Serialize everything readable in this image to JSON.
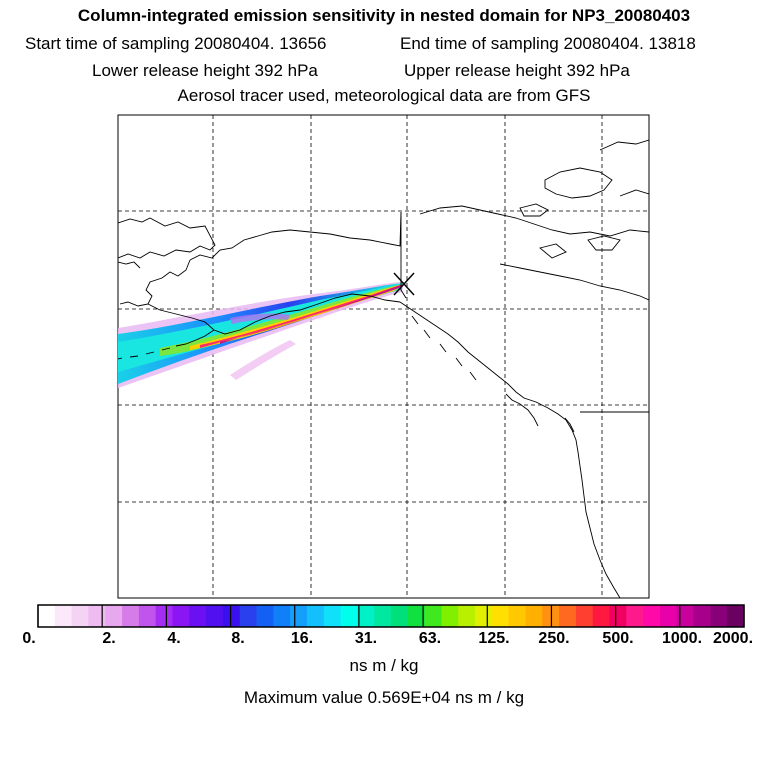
{
  "header": {
    "title": "Column-integrated emission sensitivity in nested domain for NP3_20080403",
    "start_time": "Start time of sampling 20080404. 13656",
    "end_time": "End time of sampling 20080404. 13818",
    "lower_height": "Lower release height  392 hPa",
    "upper_height": "Upper release height  392 hPa",
    "tracer_note": "Aerosol tracer used, meteorological data are from GFS"
  },
  "map": {
    "receptor_marker": "receptor-x-marker",
    "plume_colors": [
      "#e7a8f0",
      "#9a2cff",
      "#1d8cff",
      "#19e6e0",
      "#7ae640",
      "#ffd000",
      "#ff2a6a",
      "#c0148c"
    ]
  },
  "colorbar": {
    "colors": [
      "#ffffff",
      "#fbe8fb",
      "#f5d3f5",
      "#eebcf0",
      "#e7a8f0",
      "#d67ce8",
      "#c054ec",
      "#a52cf2",
      "#8a16f4",
      "#6a10f2",
      "#5010f0",
      "#3a10ee",
      "#2a40ee",
      "#1460f4",
      "#1080f8",
      "#14a0fa",
      "#14c0fc",
      "#10e0f8",
      "#00ffec",
      "#00f0c8",
      "#00e8a0",
      "#00e07a",
      "#10e040",
      "#40e820",
      "#80f000",
      "#b8f000",
      "#e0f000",
      "#ffe000",
      "#ffc800",
      "#ffb000",
      "#ff9010",
      "#ff6a20",
      "#ff4030",
      "#ff1840",
      "#f00060",
      "#ff1a8c",
      "#ff0aa8",
      "#e800a8",
      "#c8009c",
      "#a8008a",
      "#880078",
      "#6a0060"
    ],
    "tick_labels": [
      "0.",
      "2.",
      "4.",
      "8.",
      "16.",
      "31.",
      "63.",
      "125.",
      "250.",
      "500.",
      "1000.",
      "2000."
    ],
    "units": "ns m / kg",
    "max_value": "Maximum value  0.569E+04 ns m / kg"
  }
}
